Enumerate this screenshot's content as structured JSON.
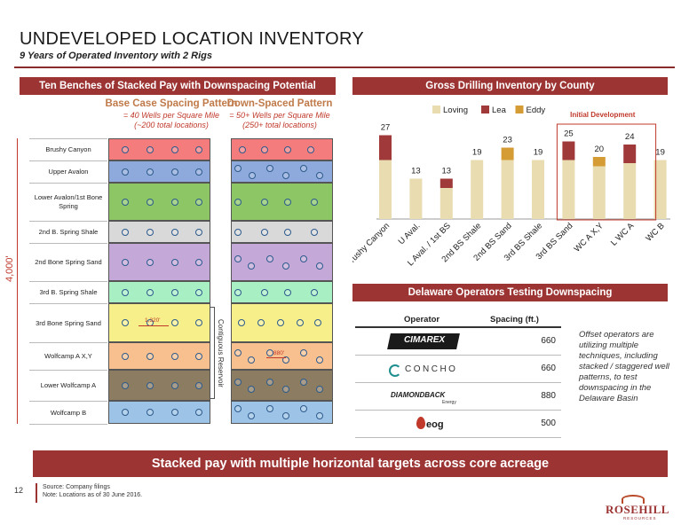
{
  "page": {
    "title": "UNDEVELOPED LOCATION INVENTORY",
    "subtitle": "9 Years of Operated Inventory with 2 Rigs",
    "bottom_banner": "Stacked pay with multiple horizontal targets across core acreage",
    "page_number": "12",
    "footer_source": "Source: Company filings",
    "footer_note": "Note: Locations as of 30 June 2016."
  },
  "left_panel": {
    "banner": "Ten Benches of Stacked Pay with Downspacing Potential",
    "base_header": "Base Case Spacing Pattern",
    "base_sub1": "= 40 Wells per Square Mile",
    "base_sub2": "(~200 total locations)",
    "down_header": "Down-Spaced Pattern",
    "down_sub1": "= 50+ Wells per Square Mile",
    "down_sub2": "(250+ total locations)",
    "depth_label": "4,000'",
    "contiguous_label": "Contiguous Reservoir",
    "spacing_1320": "1,320'",
    "spacing_880": "880'",
    "benches": [
      {
        "label": "Brushy Canyon",
        "color": "#f47c7c"
      },
      {
        "label": "Upper Avalon",
        "color": "#8ea9db"
      },
      {
        "label": "Lower Avalon/1st Bone Spring",
        "color": "#8cc665"
      },
      {
        "label": "2nd B. Spring Shale",
        "color": "#d9d9d9"
      },
      {
        "label": "2nd Bone Spring Sand",
        "color": "#c4a8d8"
      },
      {
        "label": "3rd B. Spring Shale",
        "color": "#a9efc4"
      },
      {
        "label": "3rd Bone Spring Sand",
        "color": "#f7f08a"
      },
      {
        "label": "Wolfcamp A X,Y",
        "color": "#f9c08f"
      },
      {
        "label": "Lower Wolfcamp A",
        "color": "#8c7c62"
      },
      {
        "label": "Wolfcamp B",
        "color": "#9dc3e6"
      }
    ]
  },
  "chart": {
    "banner": "Gross Drilling Inventory by County",
    "initial_development": "Initial Development"
  },
  "chart_data": {
    "type": "bar",
    "stacked": true,
    "categories": [
      "Brushy Canyon",
      "U Aval.",
      "L Aval. / 1st BS",
      "2nd BS Shale",
      "2nd BS Sand",
      "3rd BS Shale",
      "3rd BS Sand",
      "WC A X,Y",
      "L WC A",
      "WC B"
    ],
    "totals": [
      27,
      13,
      13,
      19,
      23,
      19,
      25,
      20,
      24,
      19
    ],
    "series": [
      {
        "name": "Loving",
        "color": "#e8dcb0",
        "values": [
          19,
          13,
          10,
          19,
          19,
          19,
          19,
          17,
          18,
          19
        ]
      },
      {
        "name": "Lea",
        "color": "#a0393a",
        "values": [
          8,
          0,
          3,
          0,
          0,
          0,
          6,
          0,
          6,
          0
        ]
      },
      {
        "name": "Eddy",
        "color": "#d59b35",
        "values": [
          0,
          0,
          0,
          0,
          4,
          0,
          0,
          3,
          0,
          0
        ]
      }
    ],
    "ylim": [
      0,
      30
    ],
    "legend": "top"
  },
  "operators": {
    "banner": "Delaware Operators Testing Downspacing",
    "col_operator": "Operator",
    "col_spacing": "Spacing (ft.)",
    "rows": [
      {
        "name": "CIMAREX",
        "spacing": "660"
      },
      {
        "name": "CONCHO",
        "spacing": "660"
      },
      {
        "name": "DIAMONDBACK",
        "sub": "Energy",
        "spacing": "880"
      },
      {
        "name": "eog",
        "spacing": "500"
      }
    ],
    "note": "Offset operators are utilizing multiple techniques, including stacked / staggered well patterns, to test downspacing in the Delaware Basin"
  },
  "logo": {
    "name": "ROSEHILL",
    "sub": "RESOURCES"
  }
}
